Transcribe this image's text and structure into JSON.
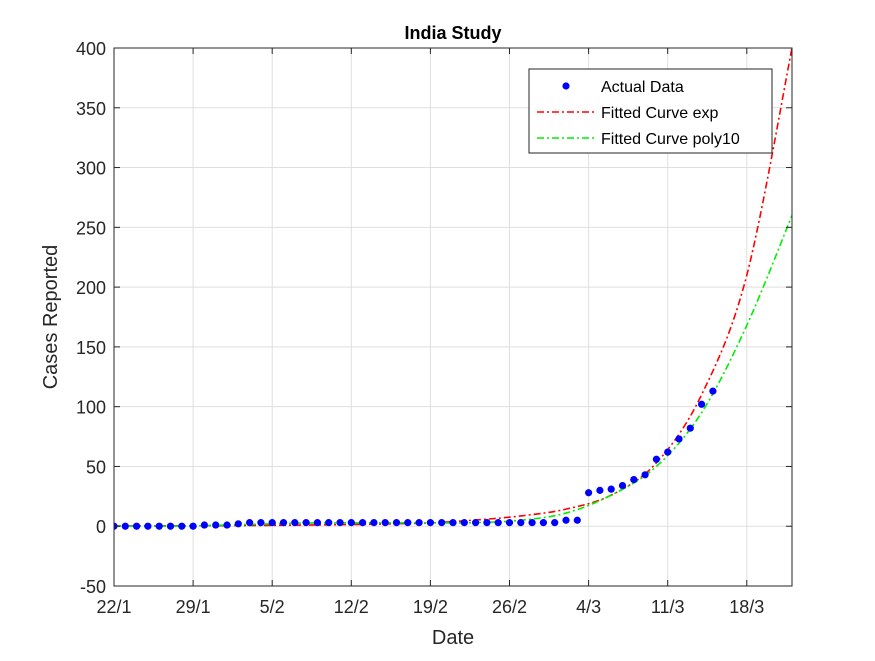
{
  "chart_data": {
    "type": "line",
    "title": "India Study",
    "xlabel": "Date",
    "ylabel": "Cases Reported",
    "x_start_label": "22/1",
    "xticks": [
      {
        "label": "22/1"
      },
      {
        "label": "29/1"
      },
      {
        "label": "5/2"
      },
      {
        "label": "12/2"
      },
      {
        "label": "19/2"
      },
      {
        "label": "26/2"
      },
      {
        "label": "4/3"
      },
      {
        "label": "11/3"
      },
      {
        "label": "18/3"
      }
    ],
    "xlim": [
      "22/1",
      "22/3"
    ],
    "ylim": [
      -50,
      400
    ],
    "yticks": [
      -50,
      0,
      50,
      100,
      150,
      200,
      250,
      300,
      350,
      400
    ],
    "grid": true,
    "legend_position": "top-right",
    "series": [
      {
        "name": "Actual Data",
        "style": "markers",
        "color": "#0000ff",
        "x": [
          "22/1",
          "23/1",
          "24/1",
          "25/1",
          "26/1",
          "27/1",
          "28/1",
          "29/1",
          "30/1",
          "31/1",
          "1/2",
          "2/2",
          "3/2",
          "4/2",
          "5/2",
          "6/2",
          "7/2",
          "8/2",
          "9/2",
          "10/2",
          "11/2",
          "12/2",
          "13/2",
          "14/2",
          "15/2",
          "16/2",
          "17/2",
          "18/2",
          "19/2",
          "20/2",
          "21/2",
          "22/2",
          "23/2",
          "24/2",
          "25/2",
          "26/2",
          "27/2",
          "28/2",
          "29/2",
          "1/3",
          "2/3",
          "3/3",
          "4/3",
          "5/3",
          "6/3",
          "7/3",
          "8/3",
          "9/3",
          "10/3",
          "11/3",
          "12/3",
          "13/3",
          "14/3",
          "15/3"
        ],
        "y": [
          0,
          0,
          0,
          0,
          0,
          0,
          0,
          0,
          1,
          1,
          1,
          2,
          3,
          3,
          3,
          3,
          3,
          3,
          3,
          3,
          3,
          3,
          3,
          3,
          3,
          3,
          3,
          3,
          3,
          3,
          3,
          3,
          3,
          3,
          3,
          3,
          3,
          3,
          3,
          3,
          5,
          5,
          28,
          30,
          31,
          34,
          39,
          43,
          56,
          62,
          73,
          82,
          102,
          113
        ]
      },
      {
        "name": "Fitted Curve exp",
        "style": "dash-dot",
        "color": "#ff0000",
        "model": "exponential",
        "x": [
          "22/1",
          "26/1",
          "30/1",
          "3/2",
          "7/2",
          "11/2",
          "15/2",
          "19/2",
          "23/2",
          "27/2",
          "2/3",
          "6/3",
          "10/3",
          "14/3",
          "18/3",
          "22/3"
        ],
        "y": [
          0.2,
          0.3,
          0.4,
          0.6,
          0.9,
          1.3,
          1.9,
          2.8,
          5.2,
          8.6,
          14.3,
          26,
          53,
          110,
          210,
          400
        ]
      },
      {
        "name": "Fitted Curve poly10",
        "style": "dash-dot",
        "color": "#00ee00",
        "model": "polynomial",
        "x": [
          "22/1",
          "26/1",
          "30/1",
          "3/2",
          "7/2",
          "11/2",
          "15/2",
          "19/2",
          "23/2",
          "27/2",
          "2/3",
          "6/3",
          "10/3",
          "14/3",
          "18/3",
          "22/3"
        ],
        "y": [
          0,
          0,
          0.5,
          1.5,
          2.5,
          2.8,
          2.8,
          2.8,
          3,
          5,
          11,
          26,
          50,
          95,
          168,
          260
        ]
      }
    ]
  }
}
